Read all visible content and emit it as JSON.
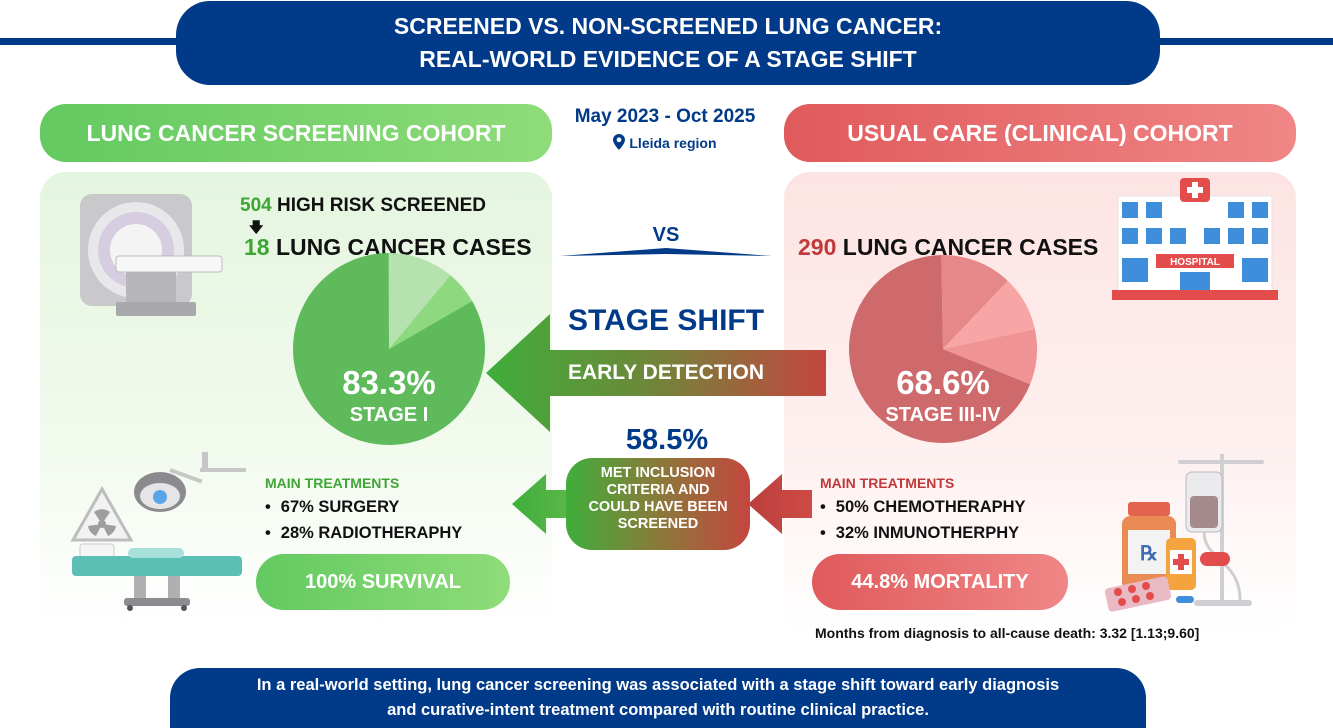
{
  "title": {
    "line1": "SCREENED VS. NON-SCREENED LUNG CANCER:",
    "line2": "REAL-WORLD EVIDENCE OF A STAGE SHIFT"
  },
  "period": {
    "dates": "May 2023 - Oct 2025",
    "region": "Lleida region"
  },
  "vs_label": "VS",
  "screening": {
    "label": "LUNG CANCER SCREENING COHORT",
    "screened_count": "504",
    "screened_text": "HIGH RISK SCREENED",
    "cases_count": "18",
    "cases_text": "LUNG CANCER CASES",
    "pie_percent": "83.3%",
    "pie_stage": "STAGE I",
    "treat_head": "MAIN TREATMENTS",
    "treatments": [
      "67% SURGERY",
      "28% RADIOTHERAPHY"
    ],
    "outcome": "100% SURVIVAL"
  },
  "usual": {
    "label": "USUAL CARE (CLINICAL) COHORT",
    "cases_count": "290",
    "cases_text": "LUNG CANCER CASES",
    "pie_percent": "68.6%",
    "pie_stage": "STAGE III-IV",
    "treat_head": "MAIN TREATMENTS",
    "treatments": [
      "50% CHEMOTHERAPHY",
      "32% INMUNOTHERPHY"
    ],
    "outcome": "44.8% MORTALITY",
    "months_note": "Months from diagnosis to all-cause death: 3.32 [1.13;9.60]",
    "hospital_sign": "HOSPITAL"
  },
  "center": {
    "stage_shift": "STAGE SHIFT",
    "early_detection": "EARLY DETECTION",
    "eligible_percent": "58.5%",
    "eligible_text": [
      "MET INCLUSION",
      "CRITERIA AND",
      "COULD HAVE BEEN",
      "SCREENED"
    ]
  },
  "chart_data": [
    {
      "type": "pie",
      "title": "",
      "series": [
        {
          "values": [
            83.3,
            11.1,
            5.6
          ]
        }
      ],
      "colors": [
        "#5fba5b",
        "#b6e2b0",
        "#8ed87f"
      ]
    },
    {
      "type": "pie",
      "title": "",
      "series": [
        {
          "values": [
            68.6,
            12.4,
            9.5,
            9.5
          ]
        }
      ],
      "colors": [
        "#cf6a6c",
        "#e6878a",
        "#f7a5a5",
        "#ef9395"
      ]
    }
  ],
  "footer": {
    "line1": "In a real-world setting, lung cancer screening was associated with a stage shift toward early diagnosis",
    "line2": "and curative-intent treatment compared with routine clinical practice."
  },
  "colors": {
    "navy": "#003a88",
    "green": "#63c960",
    "red": "#e05a5c"
  },
  "icons": [
    "mri-scanner-icon",
    "hospital-building-icon",
    "location-pin-icon",
    "radiation-warning-icon",
    "operating-table-icon",
    "surgical-lamp-icon",
    "iv-drip-icon",
    "medicine-bottles-icon"
  ]
}
